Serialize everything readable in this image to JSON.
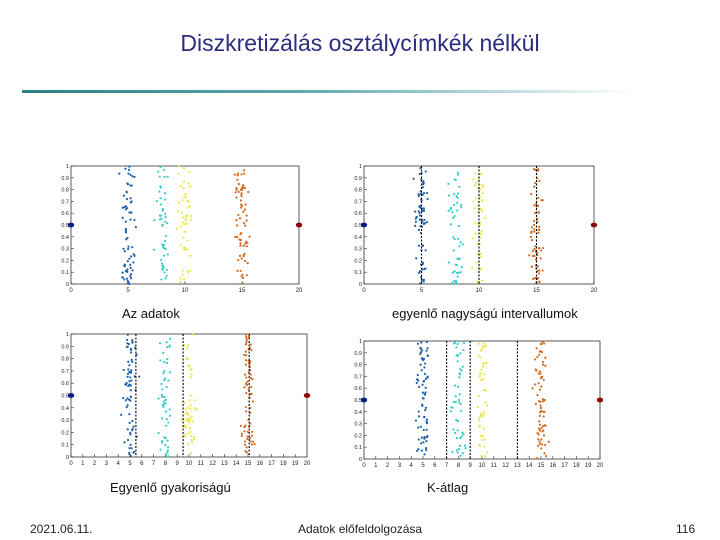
{
  "slide": {
    "title": "Diszkretizálás osztálycímkék nélkül",
    "footer_date": "2021.06.11.",
    "footer_center": "Adatok előfeldolgozása",
    "page_number": "116"
  },
  "colors": {
    "title": "#2c2c80",
    "cluster_colors": [
      "#1f5fa8",
      "#33cccc",
      "#e8e84a",
      "#d2691e"
    ],
    "outlier_left": "#0a1a8c",
    "outlier_right": "#8b0000"
  },
  "chart_data": [
    {
      "type": "scatter",
      "caption": "Az adatok",
      "xlim": [
        0,
        20
      ],
      "ylim": [
        0,
        1
      ],
      "x_ticks": [
        "0",
        "5",
        "10",
        "15",
        "20"
      ],
      "y_ticks": [
        "0",
        "0.1",
        "0.2",
        "0.3",
        "0.4",
        "0.5",
        "0.6",
        "0.7",
        "0.8",
        "0.9",
        "1"
      ],
      "clusters": [
        {
          "center": 5
        },
        {
          "center": 8
        },
        {
          "center": 10
        },
        {
          "center": 15
        }
      ],
      "outliers": [
        {
          "x": 0,
          "y": 0.5
        },
        {
          "x": 20,
          "y": 0.5
        }
      ],
      "cut_lines": []
    },
    {
      "type": "scatter",
      "caption": "egyenlő nagyságú intervallumok",
      "xlim": [
        0,
        20
      ],
      "ylim": [
        0,
        1
      ],
      "x_ticks": [
        "0",
        "5",
        "10",
        "15",
        "20"
      ],
      "y_ticks": [
        "0",
        "0.1",
        "0.2",
        "0.3",
        "0.4",
        "0.5",
        "0.6",
        "0.7",
        "0.8",
        "0.9",
        "1"
      ],
      "clusters": [
        {
          "center": 5
        },
        {
          "center": 8
        },
        {
          "center": 10
        },
        {
          "center": 15
        }
      ],
      "outliers": [
        {
          "x": 0,
          "y": 0.5
        },
        {
          "x": 20,
          "y": 0.5
        }
      ],
      "cut_lines": [
        5,
        10,
        15
      ]
    },
    {
      "type": "scatter",
      "caption": "Egyenlő gyakoriságú",
      "xlim": [
        0,
        20
      ],
      "ylim": [
        0,
        1
      ],
      "x_ticks": [
        "0",
        "1",
        "2",
        "3",
        "4",
        "5",
        "6",
        "7",
        "8",
        "9",
        "10",
        "11",
        "12",
        "13",
        "14",
        "15",
        "16",
        "17",
        "18",
        "19",
        "20"
      ],
      "y_ticks": [
        "0",
        "0.1",
        "0.2",
        "0.3",
        "0.4",
        "0.5",
        "0.6",
        "0.7",
        "0.8",
        "0.9",
        "1"
      ],
      "clusters": [
        {
          "center": 5
        },
        {
          "center": 8
        },
        {
          "center": 10
        },
        {
          "center": 15
        }
      ],
      "outliers": [
        {
          "x": 0,
          "y": 0.5
        },
        {
          "x": 20,
          "y": 0.5
        }
      ],
      "cut_lines": [
        5.5,
        9.5,
        15.1
      ]
    },
    {
      "type": "scatter",
      "caption": "K-átlag",
      "xlim": [
        0,
        20
      ],
      "ylim": [
        0,
        1
      ],
      "x_ticks": [
        "0",
        "1",
        "2",
        "3",
        "4",
        "5",
        "6",
        "7",
        "8",
        "9",
        "10",
        "11",
        "12",
        "13",
        "14",
        "15",
        "16",
        "17",
        "18",
        "19",
        "20"
      ],
      "y_ticks": [
        "0",
        "0.1",
        "0.2",
        "0.3",
        "0.4",
        "0.5",
        "0.6",
        "0.7",
        "0.8",
        "0.9",
        "1"
      ],
      "clusters": [
        {
          "center": 5
        },
        {
          "center": 8
        },
        {
          "center": 10
        },
        {
          "center": 15
        }
      ],
      "outliers": [
        {
          "x": 0,
          "y": 0.5
        },
        {
          "x": 20,
          "y": 0.5
        }
      ],
      "cut_lines": [
        7,
        9,
        13
      ]
    }
  ]
}
